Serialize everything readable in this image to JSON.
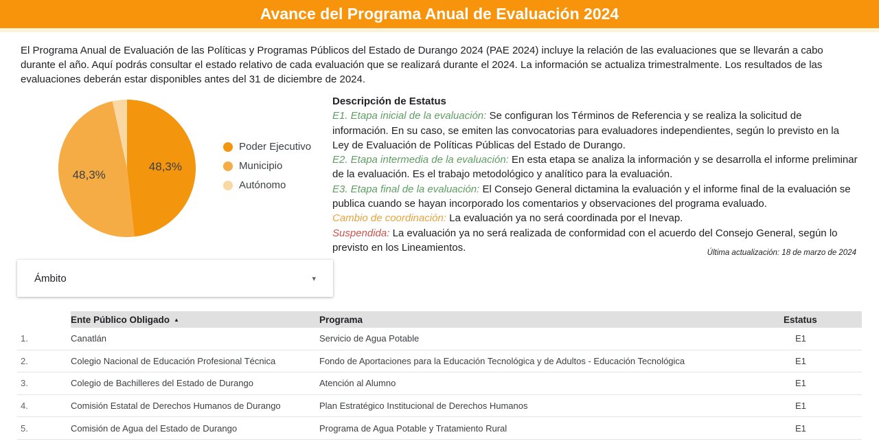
{
  "header": {
    "title": "Avance del Programa Anual de Evaluación 2024"
  },
  "intro": "El Programa Anual de Evaluación de las Políticas y Programas Públicos del Estado de Durango 2024 (PAE 2024) incluye la relación de las evaluaciones que se llevarán a cabo durante el año. Aquí podrás consultar el estado relativo de cada evaluación que se realizará durante el 2024. La información se actualiza trimestralmente. Los resultados de las evaluaciones deberán estar disponibles antes del 31 de diciembre de 2024.",
  "chart_data": {
    "type": "pie",
    "title": "",
    "legend_position": "right",
    "slices": [
      {
        "label": "Poder Ejecutivo",
        "value": 48.3,
        "display": "48,3%",
        "color": "#F4950E"
      },
      {
        "label": "Municipio",
        "value": 48.3,
        "display": "48,3%",
        "color": "#F6AC44"
      },
      {
        "label": "Autónomo",
        "value": 3.4,
        "display": "",
        "color": "#FAD8A4"
      }
    ]
  },
  "status": {
    "heading": "Descripción de Estatus",
    "items": [
      {
        "label": "E1. Etapa inicial de la evaluación:",
        "color": "#5E9E62",
        "text": "Se configuran los Términos de Referencia y se realiza la solicitud de información. En su caso, se emiten las convocatorias para evaluadores independientes, según lo previsto en la Ley de Evaluación de Políticas Públicas del Estado de Durango."
      },
      {
        "label": "E2. Etapa intermedia de la evaluación:",
        "color": "#5E9E62",
        "text": "En esta etapa se analiza la información y se desarrolla el informe preliminar de la evaluación. Es el trabajo metodológico y analítico para la evaluación."
      },
      {
        "label": "E3. Etapa final de la evaluación:",
        "color": "#5E9E62",
        "text": "El Consejo General dictamina la evaluación y el informe final de la evaluación se publica cuando se hayan incorporado los comentarios y observaciones del programa evaluado."
      },
      {
        "label": "Cambio de coordinación:",
        "color": "#E6A33C",
        "text": "La evaluación ya no será coordinada por el Inevap."
      },
      {
        "label": "Suspendida:",
        "color": "#CB544C",
        "text": "La evaluación ya no será realizada de conformidad con el acuerdo del Consejo General, según lo previsto en los Lineamientos."
      }
    ]
  },
  "last_update": "Última actualización: 18 de marzo de 2024",
  "filter": {
    "label": "Ámbito",
    "caret": "▾"
  },
  "table": {
    "columns": {
      "num": "",
      "ente": "Ente Público Obligado",
      "programa": "Programa",
      "estatus": "Estatus"
    },
    "sort_icon": "▲",
    "rows": [
      {
        "num": "1.",
        "ente": "Canatlán",
        "programa": "Servicio de Agua Potable",
        "estatus": "E1"
      },
      {
        "num": "2.",
        "ente": "Colegio Nacional de Educación Profesional Técnica",
        "programa": "Fondo de Aportaciones para la Educación Tecnológica y de Adultos - Educación Tecnológica",
        "estatus": "E1"
      },
      {
        "num": "3.",
        "ente": "Colegio de Bachilleres del Estado de Durango",
        "programa": "Atención al Alumno",
        "estatus": "E1"
      },
      {
        "num": "4.",
        "ente": "Comisión Estatal de Derechos Humanos de Durango",
        "programa": "Plan Estratégico Institucional de Derechos Humanos",
        "estatus": "E1"
      },
      {
        "num": "5.",
        "ente": "Comisión de Agua del Estado de Durango",
        "programa": "Programa de Agua Potable y Tratamiento Rural",
        "estatus": "E1"
      }
    ]
  }
}
